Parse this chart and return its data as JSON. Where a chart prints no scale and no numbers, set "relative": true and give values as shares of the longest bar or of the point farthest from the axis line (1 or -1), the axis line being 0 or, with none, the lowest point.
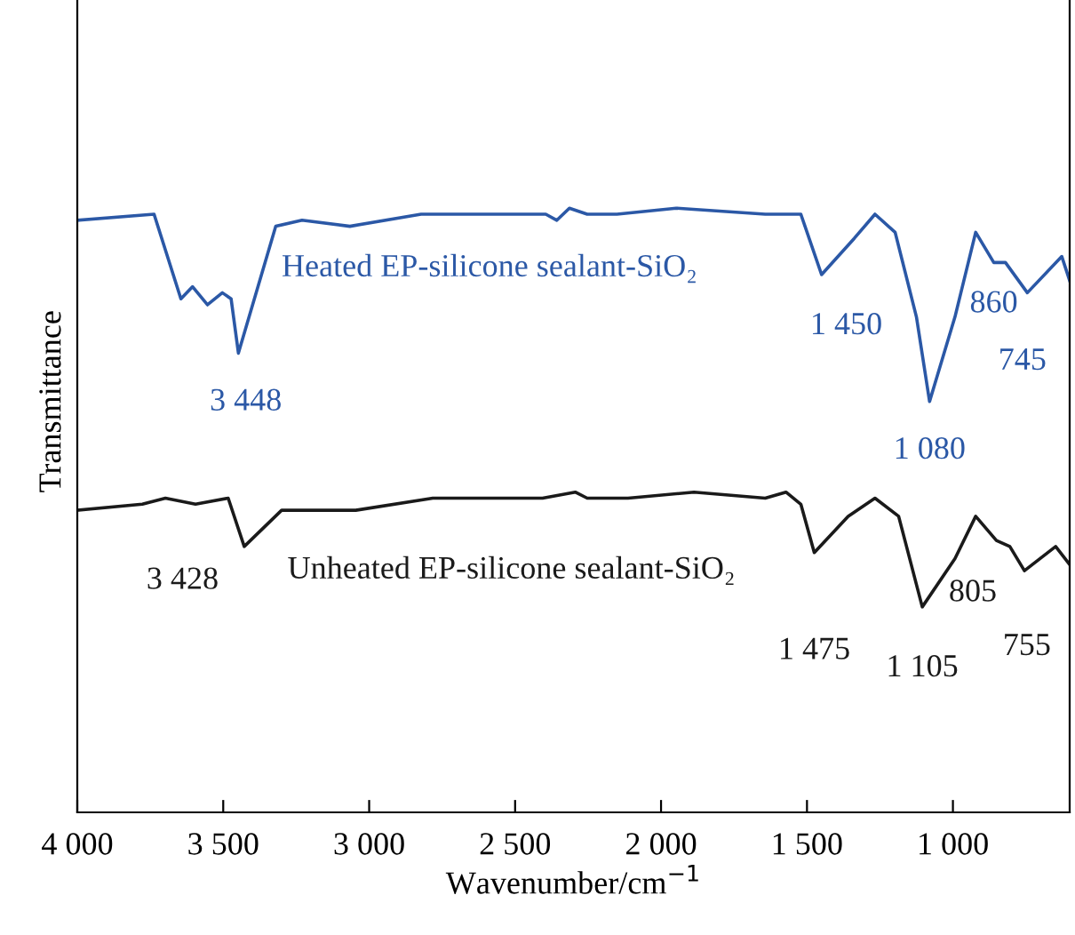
{
  "chart_data": {
    "type": "line",
    "relative": true,
    "xlabel": "Wavenumber/cm$^{−1}$",
    "ylabel": "Transmittance",
    "xlim": [
      4000,
      600
    ],
    "xticks": [
      {
        "value": 4000,
        "label": "4 000"
      },
      {
        "value": 3500,
        "label": "3 500"
      },
      {
        "value": 3000,
        "label": "3 000"
      },
      {
        "value": 2500,
        "label": "2 500"
      },
      {
        "value": 2000,
        "label": "2 000"
      },
      {
        "value": 1500,
        "label": "1 500"
      },
      {
        "value": 1000,
        "label": "1 000"
      }
    ],
    "grid": false,
    "legend": false,
    "marker": "none",
    "line_style": "solid",
    "series": [
      {
        "name": "Heated EP-silicone sealant-SiO₂",
        "color": "#2b58a6",
        "x": [
          4000,
          3737,
          3645,
          3605,
          3554,
          3503,
          3473,
          3448,
          3320,
          3230,
          3066,
          2822,
          2578,
          2395,
          2357,
          2314,
          2253,
          2151,
          1948,
          1643,
          1582,
          1521,
          1450,
          1338,
          1267,
          1198,
          1125,
          1080,
          993,
          922,
          860,
          820,
          745,
          627,
          600
        ],
        "values": [
          0.98,
          0.99,
          0.85,
          0.87,
          0.84,
          0.86,
          0.85,
          0.76,
          0.97,
          0.98,
          0.97,
          0.99,
          0.99,
          0.99,
          0.98,
          1,
          0.99,
          0.99,
          1.0,
          0.99,
          0.99,
          0.99,
          0.89,
          0.95,
          0.99,
          0.96,
          0.82,
          0.68,
          0.82,
          0.96,
          0.91,
          0.91,
          0.86,
          0.92,
          0.88
        ]
      },
      {
        "name": "Unheated EP-silicone sealant-SiO₂",
        "color": "#1a1a1a",
        "x": [
          4000,
          3777,
          3698,
          3595,
          3483,
          3428,
          3300,
          3046,
          2782,
          2517,
          2406,
          2294,
          2253,
          2113,
          1887,
          1643,
          1572,
          1521,
          1475,
          1359,
          1267,
          1186,
          1105,
          993,
          922,
          851,
          805,
          755,
          648,
          600
        ],
        "values": [
          0.5,
          0.51,
          0.52,
          0.51,
          0.52,
          0.44,
          0.5,
          0.5,
          0.52,
          0.52,
          0.52,
          0.53,
          0.52,
          0.52,
          0.53,
          0.52,
          0.53,
          0.51,
          0.43,
          0.49,
          0.52,
          0.49,
          0.34,
          0.42,
          0.49,
          0.45,
          0.44,
          0.4,
          0.44,
          0.41
        ]
      }
    ],
    "annotations": [
      {
        "text": "3 448",
        "x": 3448,
        "y": 0.76
      },
      {
        "text": "1 450",
        "x": 1450,
        "y": 0.89
      },
      {
        "text": "1 080",
        "x": 1080,
        "y": 0.68
      },
      {
        "text": "860",
        "x": 860,
        "y": 0.91
      },
      {
        "text": "745",
        "x": 745,
        "y": 0.86
      },
      {
        "text": "3 428",
        "x": 3428,
        "y": 0.44
      },
      {
        "text": "1 475",
        "x": 1475,
        "y": 0.43
      },
      {
        "text": "1 105",
        "x": 1105,
        "y": 0.34
      },
      {
        "text": "805",
        "x": 805,
        "y": 0.44
      },
      {
        "text": "755",
        "x": 755,
        "y": 0.4
      }
    ]
  }
}
